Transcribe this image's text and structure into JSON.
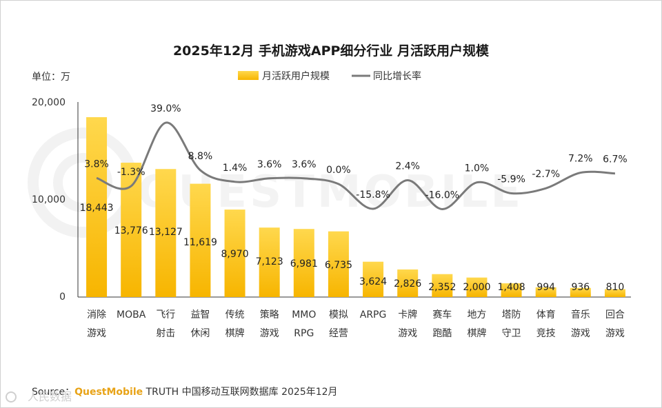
{
  "chart_data": {
    "type": "bar",
    "title": "2025年12月 手机游戏APP细分行业 月活跃用户规模",
    "unit_label": "单位：万",
    "categories": [
      [
        "消除",
        "游戏"
      ],
      [
        "MOBA",
        ""
      ],
      [
        "飞行",
        "射击"
      ],
      [
        "益智",
        "休闲"
      ],
      [
        "传统",
        "棋牌"
      ],
      [
        "策略",
        "游戏"
      ],
      [
        "MMO",
        "RPG"
      ],
      [
        "模拟",
        "经营"
      ],
      [
        "ARPG",
        ""
      ],
      [
        "卡牌",
        "游戏"
      ],
      [
        "赛车",
        "跑酷"
      ],
      [
        "地方",
        "棋牌"
      ],
      [
        "塔防",
        "守卫"
      ],
      [
        "体育",
        "竞技"
      ],
      [
        "音乐",
        "游戏"
      ],
      [
        "回合",
        "游戏"
      ]
    ],
    "series": [
      {
        "name": "月活跃用户规模",
        "type": "bar",
        "values": [
          18443,
          13776,
          13127,
          11619,
          8970,
          7123,
          6981,
          6735,
          3624,
          2826,
          2352,
          2000,
          1408,
          994,
          936,
          810
        ],
        "labels": [
          "18,443",
          "13,776",
          "13,127",
          "11,619",
          "8,970",
          "7,123",
          "6,981",
          "6,735",
          "3,624",
          "2,826",
          "2,352",
          "2,000",
          "1,408",
          "994",
          "936",
          "810"
        ]
      },
      {
        "name": "同比增长率",
        "type": "line",
        "values": [
          3.8,
          -1.3,
          39.0,
          8.8,
          1.4,
          3.6,
          3.6,
          0.0,
          -15.8,
          2.4,
          -16.0,
          1.0,
          -5.9,
          -2.7,
          7.2,
          6.7
        ],
        "labels": [
          "3.8%",
          "-1.3%",
          "39.0%",
          "8.8%",
          "1.4%",
          "3.6%",
          "3.6%",
          "0.0%",
          "-15.8%",
          "2.4%",
          "-16.0%",
          "1.0%",
          "-5.9%",
          "-2.7%",
          "7.2%",
          "6.7%"
        ]
      }
    ],
    "ylim": [
      0,
      20000
    ],
    "yticks": [
      "0",
      "10,000",
      "20,000"
    ],
    "legend_position": "top-center",
    "colors": {
      "bar_top": "#ffd84d",
      "bar_bottom": "#f7b500",
      "line": "#7a7a7a"
    }
  },
  "source": {
    "prefix": "Source：",
    "brand": "QuestMobile",
    "rest": " TRUTH 中国移动互联网数据库 2025年12月"
  },
  "watermark": {
    "text": "QUESTMOBILE",
    "corner": "人民数据"
  }
}
